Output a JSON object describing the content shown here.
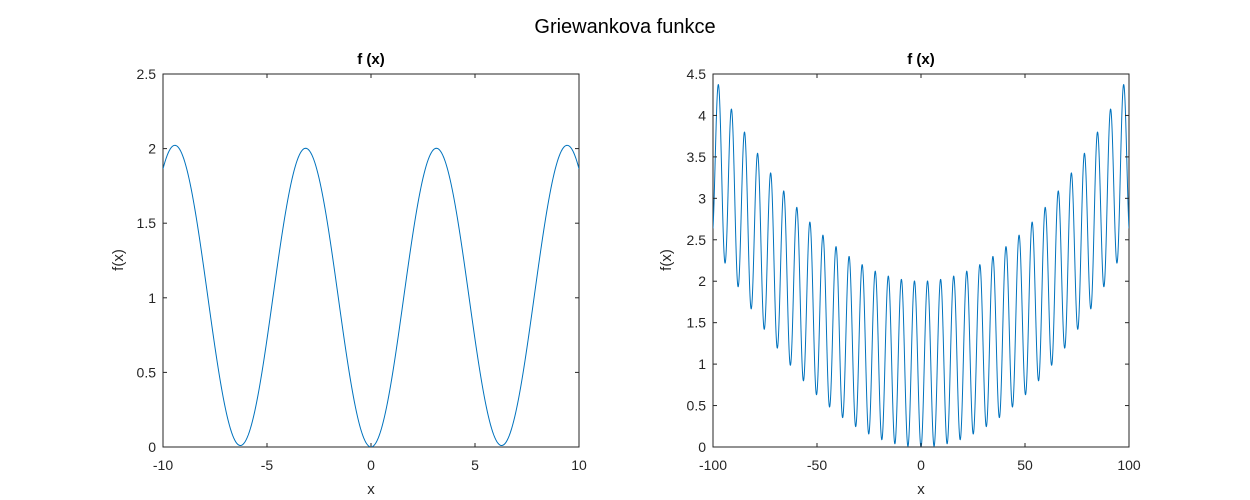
{
  "figure": {
    "title": "Griewankova funkce"
  },
  "chart_data": [
    {
      "type": "line",
      "title": "f (x)",
      "xlabel": "x",
      "ylabel": "f(x)",
      "xlim": [
        -10,
        10
      ],
      "ylim": [
        0,
        2.5
      ],
      "xticks": [
        "-10",
        "-5",
        "0",
        "5",
        "10"
      ],
      "yticks": [
        "0",
        "0.5",
        "1",
        "1.5",
        "2",
        "2.5"
      ],
      "grid": false,
      "function": "1 + x^2/4000 - cos(x)",
      "sample_step": 0.05,
      "series": [
        {
          "color": "#0072bd"
        }
      ]
    },
    {
      "type": "line",
      "title": "f (x)",
      "xlabel": "x",
      "ylabel": "f(x)",
      "xlim": [
        -100,
        100
      ],
      "ylim": [
        0,
        4.5
      ],
      "xticks": [
        "-100",
        "-50",
        "0",
        "50",
        "100"
      ],
      "yticks": [
        "0",
        "0.5",
        "1",
        "1.5",
        "2",
        "2.5",
        "3",
        "3.5",
        "4",
        "4.5"
      ],
      "grid": false,
      "function": "1 + x^2/4000 - cos(x)",
      "sample_step": 0.05,
      "series": [
        {
          "color": "#0072bd"
        }
      ]
    }
  ]
}
